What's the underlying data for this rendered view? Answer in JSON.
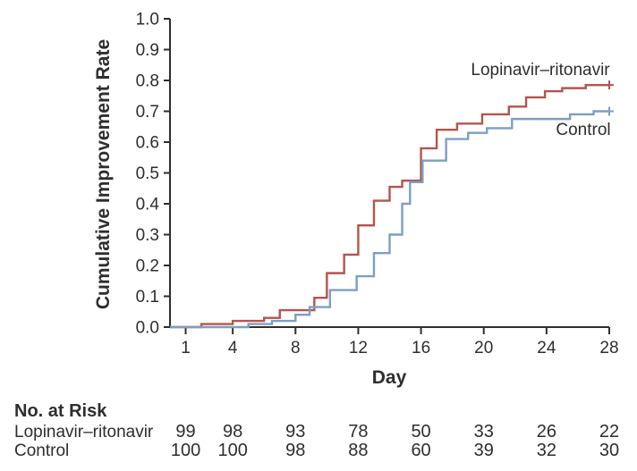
{
  "figure": {
    "background": "#ffffff",
    "axis_color": "#2f2e2e",
    "text_color": "#2f2e2e"
  },
  "chart_data": {
    "type": "line",
    "subtype": "kaplan-meier-step",
    "title": "",
    "xlabel": "Day",
    "ylabel": "Cumulative Improvement Rate",
    "xlim": [
      0,
      28
    ],
    "ylim": [
      0,
      1.0
    ],
    "xticks": [
      1,
      4,
      8,
      12,
      16,
      20,
      24,
      28
    ],
    "yticks": [
      0.0,
      0.1,
      0.2,
      0.3,
      0.4,
      0.5,
      0.6,
      0.7,
      0.8,
      0.9,
      1.0
    ],
    "grid": false,
    "legend_position": "inline-labels",
    "series": [
      {
        "name": "Lopinavir–ritonavir",
        "color": "#b5544c",
        "censor_mark_at_end": true,
        "points": [
          [
            0,
            0
          ],
          [
            2,
            0.01
          ],
          [
            4,
            0.02
          ],
          [
            6,
            0.03
          ],
          [
            7,
            0.055
          ],
          [
            9.2,
            0.095
          ],
          [
            10,
            0.175
          ],
          [
            11.1,
            0.235
          ],
          [
            12,
            0.33
          ],
          [
            13,
            0.41
          ],
          [
            14,
            0.455
          ],
          [
            14.8,
            0.475
          ],
          [
            16,
            0.58
          ],
          [
            17,
            0.64
          ],
          [
            18.3,
            0.66
          ],
          [
            19.9,
            0.69
          ],
          [
            21.6,
            0.715
          ],
          [
            22.7,
            0.745
          ],
          [
            23.9,
            0.765
          ],
          [
            25,
            0.775
          ],
          [
            26.5,
            0.785
          ],
          [
            28,
            0.785
          ]
        ]
      },
      {
        "name": "Control",
        "color": "#7e9ec4",
        "censor_mark_at_end": true,
        "points": [
          [
            0,
            0
          ],
          [
            5,
            0.01
          ],
          [
            6.5,
            0.02
          ],
          [
            8,
            0.04
          ],
          [
            8.9,
            0.065
          ],
          [
            10.2,
            0.12
          ],
          [
            11.9,
            0.165
          ],
          [
            13,
            0.24
          ],
          [
            14,
            0.3
          ],
          [
            14.8,
            0.4
          ],
          [
            15.3,
            0.47
          ],
          [
            16.1,
            0.54
          ],
          [
            17.6,
            0.61
          ],
          [
            19,
            0.63
          ],
          [
            20.2,
            0.645
          ],
          [
            21.8,
            0.675
          ],
          [
            25.5,
            0.69
          ],
          [
            27,
            0.7
          ],
          [
            28,
            0.7
          ]
        ]
      }
    ],
    "risk_table": {
      "title": "No. at Risk",
      "days": [
        1,
        4,
        8,
        12,
        16,
        20,
        24,
        28
      ],
      "rows": [
        {
          "label": "Lopinavir–ritonavir",
          "values": [
            99,
            98,
            93,
            78,
            50,
            33,
            26,
            22
          ]
        },
        {
          "label": "Control",
          "values": [
            100,
            100,
            98,
            88,
            60,
            39,
            32,
            30
          ]
        }
      ]
    }
  }
}
